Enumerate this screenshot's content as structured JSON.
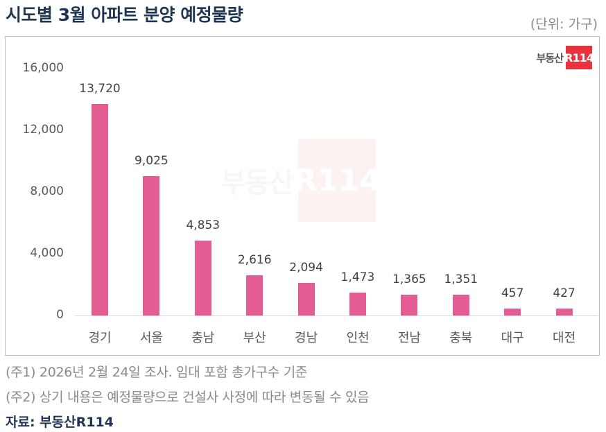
{
  "header": {
    "title": "시도별 3월 아파트 분양 예정물량",
    "unit": "(단위: 가구)"
  },
  "logo": {
    "text": "부동산",
    "box": "R114",
    "color": "#e8333c"
  },
  "watermark": {
    "text": "부동산",
    "box": "R114"
  },
  "colors": {
    "bar": "#e35d93",
    "title": "#1f3552",
    "axis_text": "#595959",
    "note_text": "#8a8a8a"
  },
  "axis": {
    "y_ticks": [
      "16,000",
      "12,000",
      "8,000",
      "4,000",
      "0"
    ]
  },
  "chart_data": {
    "type": "bar",
    "title": "시도별 3월 아파트 분양 예정물량",
    "subtitle": "(단위: 가구)",
    "xlabel": "",
    "ylabel": "",
    "categories": [
      "경기",
      "서울",
      "충남",
      "부산",
      "경남",
      "인천",
      "전남",
      "충북",
      "대구",
      "대전"
    ],
    "values": [
      13720,
      9025,
      4853,
      2616,
      2094,
      1473,
      1365,
      1351,
      457,
      427
    ],
    "value_labels": [
      "13,720",
      "9,025",
      "4,853",
      "2,616",
      "2,094",
      "1,473",
      "1,365",
      "1,351",
      "457",
      "427"
    ],
    "ylim": [
      0,
      16000
    ],
    "y_ticks": [
      0,
      4000,
      8000,
      12000,
      16000
    ],
    "grid": false,
    "legend": null,
    "color": "#e35d93"
  },
  "notes": [
    "(주1) 2026년 2월 24일 조사. 임대 포함 총가구수 기준",
    "(주2) 상기 내용은 예정물량으로 건설사 사정에 따라 변동될 수 있음"
  ],
  "source": "자료: 부동산R114"
}
